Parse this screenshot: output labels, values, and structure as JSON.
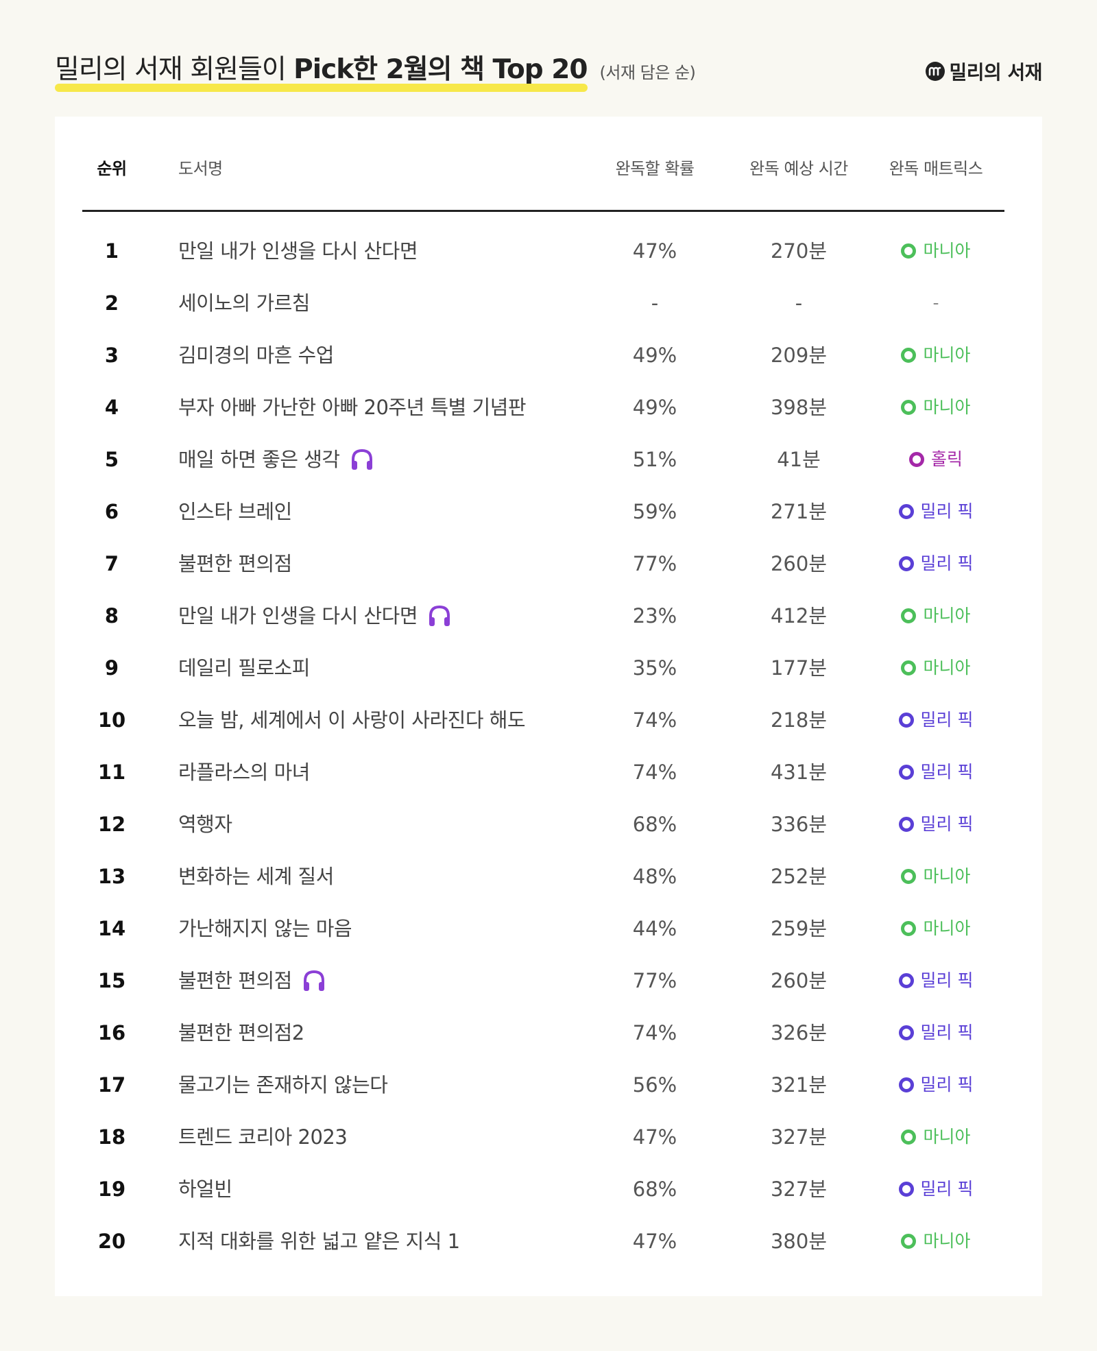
{
  "header": {
    "title_plain": "밀리의 서재 회원들이 ",
    "title_bold": "Pick한 2월의 책 Top 20",
    "subtitle": "(서재 담은 순)",
    "brand": "밀리의 서재",
    "brand_logo_icon": "millie-logo-icon"
  },
  "table": {
    "headers": {
      "rank": "순위",
      "title": "도서명",
      "prob": "완독할 확률",
      "time": "완독 예상 시간",
      "matrix": "완독 매트릭스"
    },
    "rows": [
      {
        "rank": "1",
        "title": "만일 내가 인생을 다시 산다면",
        "audio": false,
        "prob": "47%",
        "time": "270분",
        "matrix": "마니아",
        "type": "mania"
      },
      {
        "rank": "2",
        "title": "세이노의 가르침",
        "audio": false,
        "prob": "-",
        "time": "-",
        "matrix": "-",
        "type": "none"
      },
      {
        "rank": "3",
        "title": "김미경의 마흔 수업",
        "audio": false,
        "prob": "49%",
        "time": "209분",
        "matrix": "마니아",
        "type": "mania"
      },
      {
        "rank": "4",
        "title": "부자 아빠 가난한 아빠 20주년 특별 기념판",
        "audio": false,
        "prob": "49%",
        "time": "398분",
        "matrix": "마니아",
        "type": "mania"
      },
      {
        "rank": "5",
        "title": "매일 하면 좋은 생각",
        "audio": true,
        "prob": "51%",
        "time": "41분",
        "matrix": "홀릭",
        "type": "hollic"
      },
      {
        "rank": "6",
        "title": "인스타 브레인",
        "audio": false,
        "prob": "59%",
        "time": "271분",
        "matrix": "밀리 픽",
        "type": "pick"
      },
      {
        "rank": "7",
        "title": "불편한 편의점",
        "audio": false,
        "prob": "77%",
        "time": "260분",
        "matrix": "밀리 픽",
        "type": "pick"
      },
      {
        "rank": "8",
        "title": "만일 내가 인생을 다시 산다면",
        "audio": true,
        "prob": "23%",
        "time": "412분",
        "matrix": "마니아",
        "type": "mania"
      },
      {
        "rank": "9",
        "title": "데일리 필로소피",
        "audio": false,
        "prob": "35%",
        "time": "177분",
        "matrix": "마니아",
        "type": "mania"
      },
      {
        "rank": "10",
        "title": "오늘 밤, 세계에서 이 사랑이 사라진다 해도",
        "audio": false,
        "prob": "74%",
        "time": "218분",
        "matrix": "밀리 픽",
        "type": "pick"
      },
      {
        "rank": "11",
        "title": "라플라스의 마녀",
        "audio": false,
        "prob": "74%",
        "time": "431분",
        "matrix": "밀리 픽",
        "type": "pick"
      },
      {
        "rank": "12",
        "title": "역행자",
        "audio": false,
        "prob": "68%",
        "time": "336분",
        "matrix": "밀리 픽",
        "type": "pick"
      },
      {
        "rank": "13",
        "title": "변화하는 세계 질서",
        "audio": false,
        "prob": "48%",
        "time": "252분",
        "matrix": "마니아",
        "type": "mania"
      },
      {
        "rank": "14",
        "title": "가난해지지 않는 마음",
        "audio": false,
        "prob": "44%",
        "time": "259분",
        "matrix": "마니아",
        "type": "mania"
      },
      {
        "rank": "15",
        "title": "불편한 편의점",
        "audio": true,
        "prob": "77%",
        "time": "260분",
        "matrix": "밀리 픽",
        "type": "pick"
      },
      {
        "rank": "16",
        "title": "불편한 편의점2",
        "audio": false,
        "prob": "74%",
        "time": "326분",
        "matrix": "밀리 픽",
        "type": "pick"
      },
      {
        "rank": "17",
        "title": "물고기는 존재하지 않는다",
        "audio": false,
        "prob": "56%",
        "time": "321분",
        "matrix": "밀리 픽",
        "type": "pick"
      },
      {
        "rank": "18",
        "title": "트렌드 코리아 2023",
        "audio": false,
        "prob": "47%",
        "time": "327분",
        "matrix": "마니아",
        "type": "mania"
      },
      {
        "rank": "19",
        "title": "하얼빈",
        "audio": false,
        "prob": "68%",
        "time": "327분",
        "matrix": "밀리 픽",
        "type": "pick"
      },
      {
        "rank": "20",
        "title": "지적 대화를 위한 넓고 얕은 지식 1",
        "audio": false,
        "prob": "47%",
        "time": "380분",
        "matrix": "마니아",
        "type": "mania"
      }
    ]
  },
  "colors": {
    "mania": "#4cbf5a",
    "pick": "#5a3fd6",
    "hollic": "#a428a8",
    "audio_icon": "#8b3fd6",
    "highlight": "#f7e84a"
  },
  "icons": {
    "audio": "headphones-icon",
    "matrix_marker": "ring-dot-icon"
  }
}
